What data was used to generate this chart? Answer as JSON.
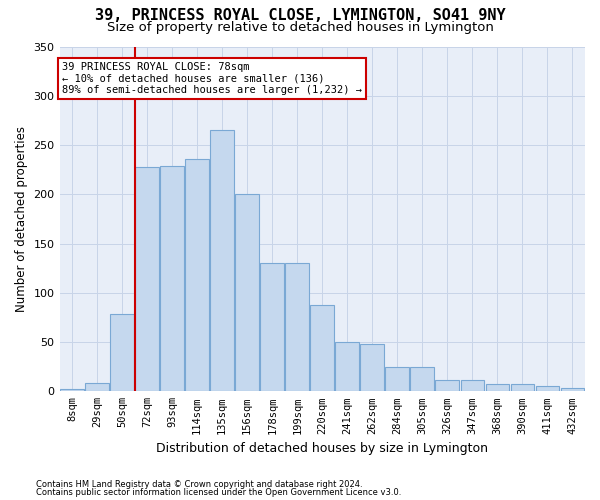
{
  "title": "39, PRINCESS ROYAL CLOSE, LYMINGTON, SO41 9NY",
  "subtitle": "Size of property relative to detached houses in Lymington",
  "xlabel": "Distribution of detached houses by size in Lymington",
  "ylabel": "Number of detached properties",
  "categories": [
    "8sqm",
    "29sqm",
    "50sqm",
    "72sqm",
    "93sqm",
    "114sqm",
    "135sqm",
    "156sqm",
    "178sqm",
    "199sqm",
    "220sqm",
    "241sqm",
    "262sqm",
    "284sqm",
    "305sqm",
    "326sqm",
    "347sqm",
    "368sqm",
    "390sqm",
    "411sqm",
    "432sqm"
  ],
  "values": [
    2,
    8,
    78,
    228,
    229,
    236,
    265,
    200,
    130,
    130,
    88,
    50,
    48,
    25,
    25,
    11,
    11,
    7,
    7,
    5,
    3
  ],
  "bar_color": "#c5d8ee",
  "bar_edge_color": "#7aa8d4",
  "vline_x_index": 3,
  "vline_color": "#cc0000",
  "annotation_text": "39 PRINCESS ROYAL CLOSE: 78sqm\n← 10% of detached houses are smaller (136)\n89% of semi-detached houses are larger (1,232) →",
  "annotation_box_color": "#ffffff",
  "annotation_box_edge": "#cc0000",
  "footer_line1": "Contains HM Land Registry data © Crown copyright and database right 2024.",
  "footer_line2": "Contains public sector information licensed under the Open Government Licence v3.0.",
  "bg_color": "#ffffff",
  "plot_bg_color": "#e8eef8",
  "grid_color": "#c8d4e8",
  "title_fontsize": 11,
  "subtitle_fontsize": 9.5,
  "tick_fontsize": 7.5,
  "ylabel_fontsize": 8.5,
  "xlabel_fontsize": 9,
  "ylim": [
    0,
    350
  ]
}
